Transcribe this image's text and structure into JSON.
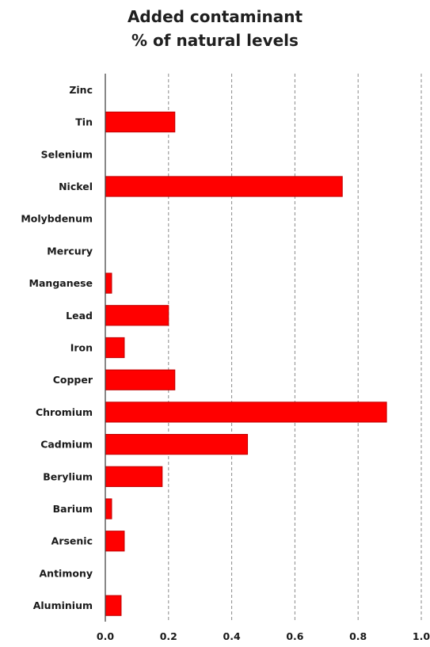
{
  "chart_data": {
    "type": "bar",
    "orientation": "horizontal",
    "title_lines": [
      "Added contaminant",
      "% of natural levels"
    ],
    "categories": [
      "Zinc",
      "Tin",
      "Selenium",
      "Nickel",
      "Molybdenum",
      "Mercury",
      "Manganese",
      "Lead",
      "Iron",
      "Copper",
      "Chromium",
      "Cadmium",
      "Berylium",
      "Barium",
      "Arsenic",
      "Antimony",
      "Aluminium"
    ],
    "values": [
      0,
      0.22,
      0,
      0.75,
      0,
      0,
      0.02,
      0.2,
      0.06,
      0.22,
      0.89,
      0.45,
      0.18,
      0.02,
      0.06,
      0,
      0.05
    ],
    "xlim": [
      0,
      1.0
    ],
    "xticks": [
      "0.0",
      "0.2",
      "0.4",
      "0.6",
      "0.8",
      "1.0"
    ],
    "xtick_values": [
      0,
      0.2,
      0.4,
      0.6,
      0.8,
      1.0
    ],
    "grid": "vertical dashed",
    "bar_color": "#ff0000",
    "bar_edge_color": "#c00000"
  }
}
